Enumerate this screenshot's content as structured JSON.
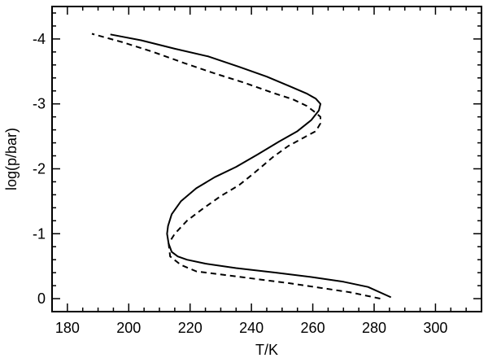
{
  "chart_data": {
    "type": "line",
    "xlabel": "T/K",
    "ylabel": "log(p/bar)",
    "xlim": [
      175,
      315
    ],
    "ylim": [
      0.2,
      -4.5
    ],
    "y_inverted": true,
    "grid": false,
    "x_ticks": [
      180,
      200,
      220,
      240,
      260,
      280,
      300
    ],
    "x_tick_labels": [
      "180",
      "200",
      "220",
      "240",
      "260",
      "280",
      "300"
    ],
    "y_ticks": [
      -4,
      -3,
      -2,
      -1,
      0
    ],
    "y_tick_labels": [
      "-4",
      "-3",
      "-2",
      "-1",
      "0"
    ],
    "series": [
      {
        "style": "solid",
        "color": "#000000",
        "x": [
          285.5,
          278.0,
          270.0,
          260.0,
          248.0,
          235.0,
          225.0,
          219.0,
          216.0,
          214.0,
          213.0,
          212.5,
          212.8,
          214.0,
          217.0,
          222.0,
          228.0,
          235.0,
          242.0,
          249.0,
          255.0,
          259.5,
          262.0,
          262.5,
          261.0,
          258.0,
          252.5,
          245.0,
          236.0,
          226.0,
          215.0,
          204.0,
          194.0
        ],
        "y": [
          -0.02,
          -0.18,
          -0.26,
          -0.33,
          -0.4,
          -0.47,
          -0.54,
          -0.6,
          -0.65,
          -0.72,
          -0.85,
          -1.0,
          -1.12,
          -1.3,
          -1.5,
          -1.7,
          -1.87,
          -2.03,
          -2.22,
          -2.42,
          -2.58,
          -2.75,
          -2.9,
          -3.0,
          -3.08,
          -3.16,
          -3.27,
          -3.42,
          -3.57,
          -3.73,
          -3.85,
          -3.98,
          -4.07
        ]
      },
      {
        "style": "dashed",
        "color": "#000000",
        "x": [
          282.0,
          272.0,
          262.0,
          252.0,
          242.0,
          232.0,
          222.0,
          217.0,
          213.5,
          213.0,
          215.0,
          219.0,
          224.0,
          230.0,
          236.0,
          240.0,
          243.0,
          247.0,
          252.0,
          257.0,
          261.0,
          262.5,
          262.5,
          260.5,
          258.0,
          253.5,
          247.0,
          238.0,
          228.0,
          218.0,
          208.0,
          198.0,
          188.0
        ],
        "y": [
          0.0,
          -0.1,
          -0.17,
          -0.24,
          -0.3,
          -0.36,
          -0.42,
          -0.52,
          -0.65,
          -0.85,
          -1.0,
          -1.2,
          -1.38,
          -1.58,
          -1.75,
          -1.9,
          -2.02,
          -2.18,
          -2.35,
          -2.48,
          -2.58,
          -2.7,
          -2.8,
          -2.88,
          -2.97,
          -3.07,
          -3.17,
          -3.32,
          -3.47,
          -3.63,
          -3.8,
          -3.95,
          -4.08
        ]
      }
    ]
  }
}
